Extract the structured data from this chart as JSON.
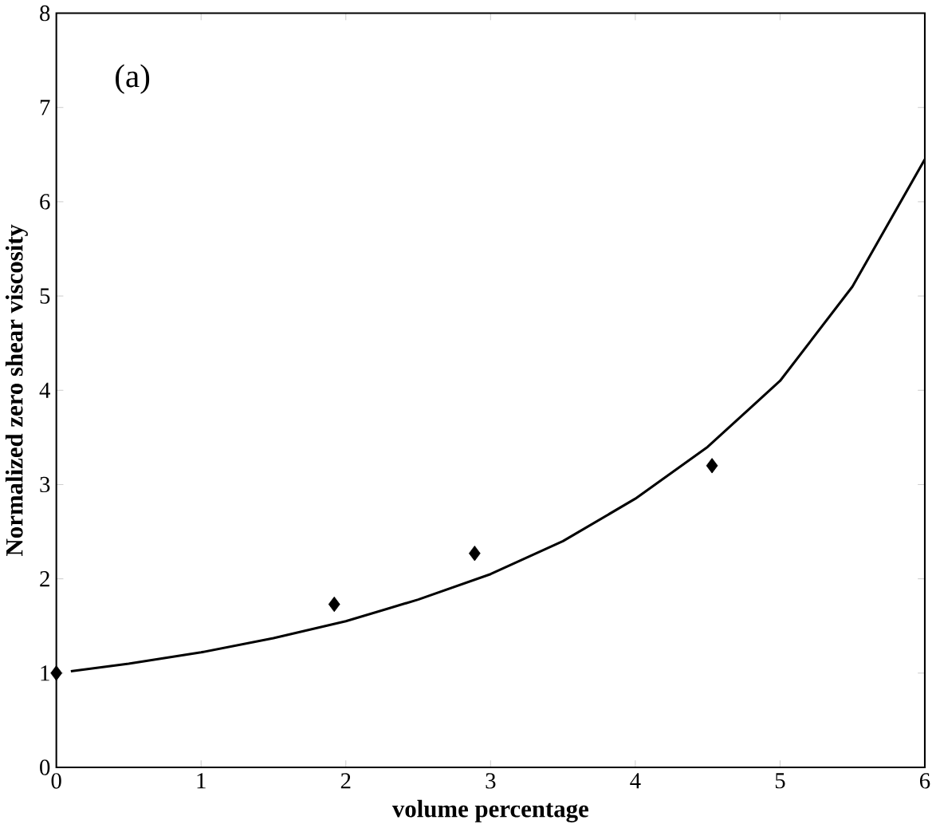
{
  "chart_data": {
    "type": "scatter",
    "xlabel": "volume percentage",
    "ylabel": "Normalized zero shear viscosity",
    "annotations": [
      "(a)"
    ],
    "xlim": [
      0,
      6
    ],
    "ylim": [
      0,
      8
    ],
    "xticks": [
      0,
      1,
      2,
      3,
      4,
      5,
      6
    ],
    "yticks": [
      0,
      1,
      2,
      3,
      4,
      5,
      6,
      7,
      8
    ],
    "grid": false,
    "series": [
      {
        "type": "line",
        "color": "#000000",
        "line_style": "solid",
        "marker": "none",
        "x": [
          0.1,
          0.5,
          1,
          1.5,
          2,
          2.5,
          3,
          3.5,
          4,
          4.5,
          5,
          5.5,
          6
        ],
        "values": [
          1.02,
          1.1,
          1.22,
          1.37,
          1.55,
          1.78,
          2.05,
          2.4,
          2.85,
          3.4,
          4.1,
          5.1,
          6.45
        ]
      },
      {
        "color": "#000000",
        "marker": "diamond",
        "x": [
          0,
          1.92,
          2.89,
          4.53
        ],
        "values": [
          1,
          1.73,
          2.27,
          3.2
        ]
      }
    ]
  }
}
